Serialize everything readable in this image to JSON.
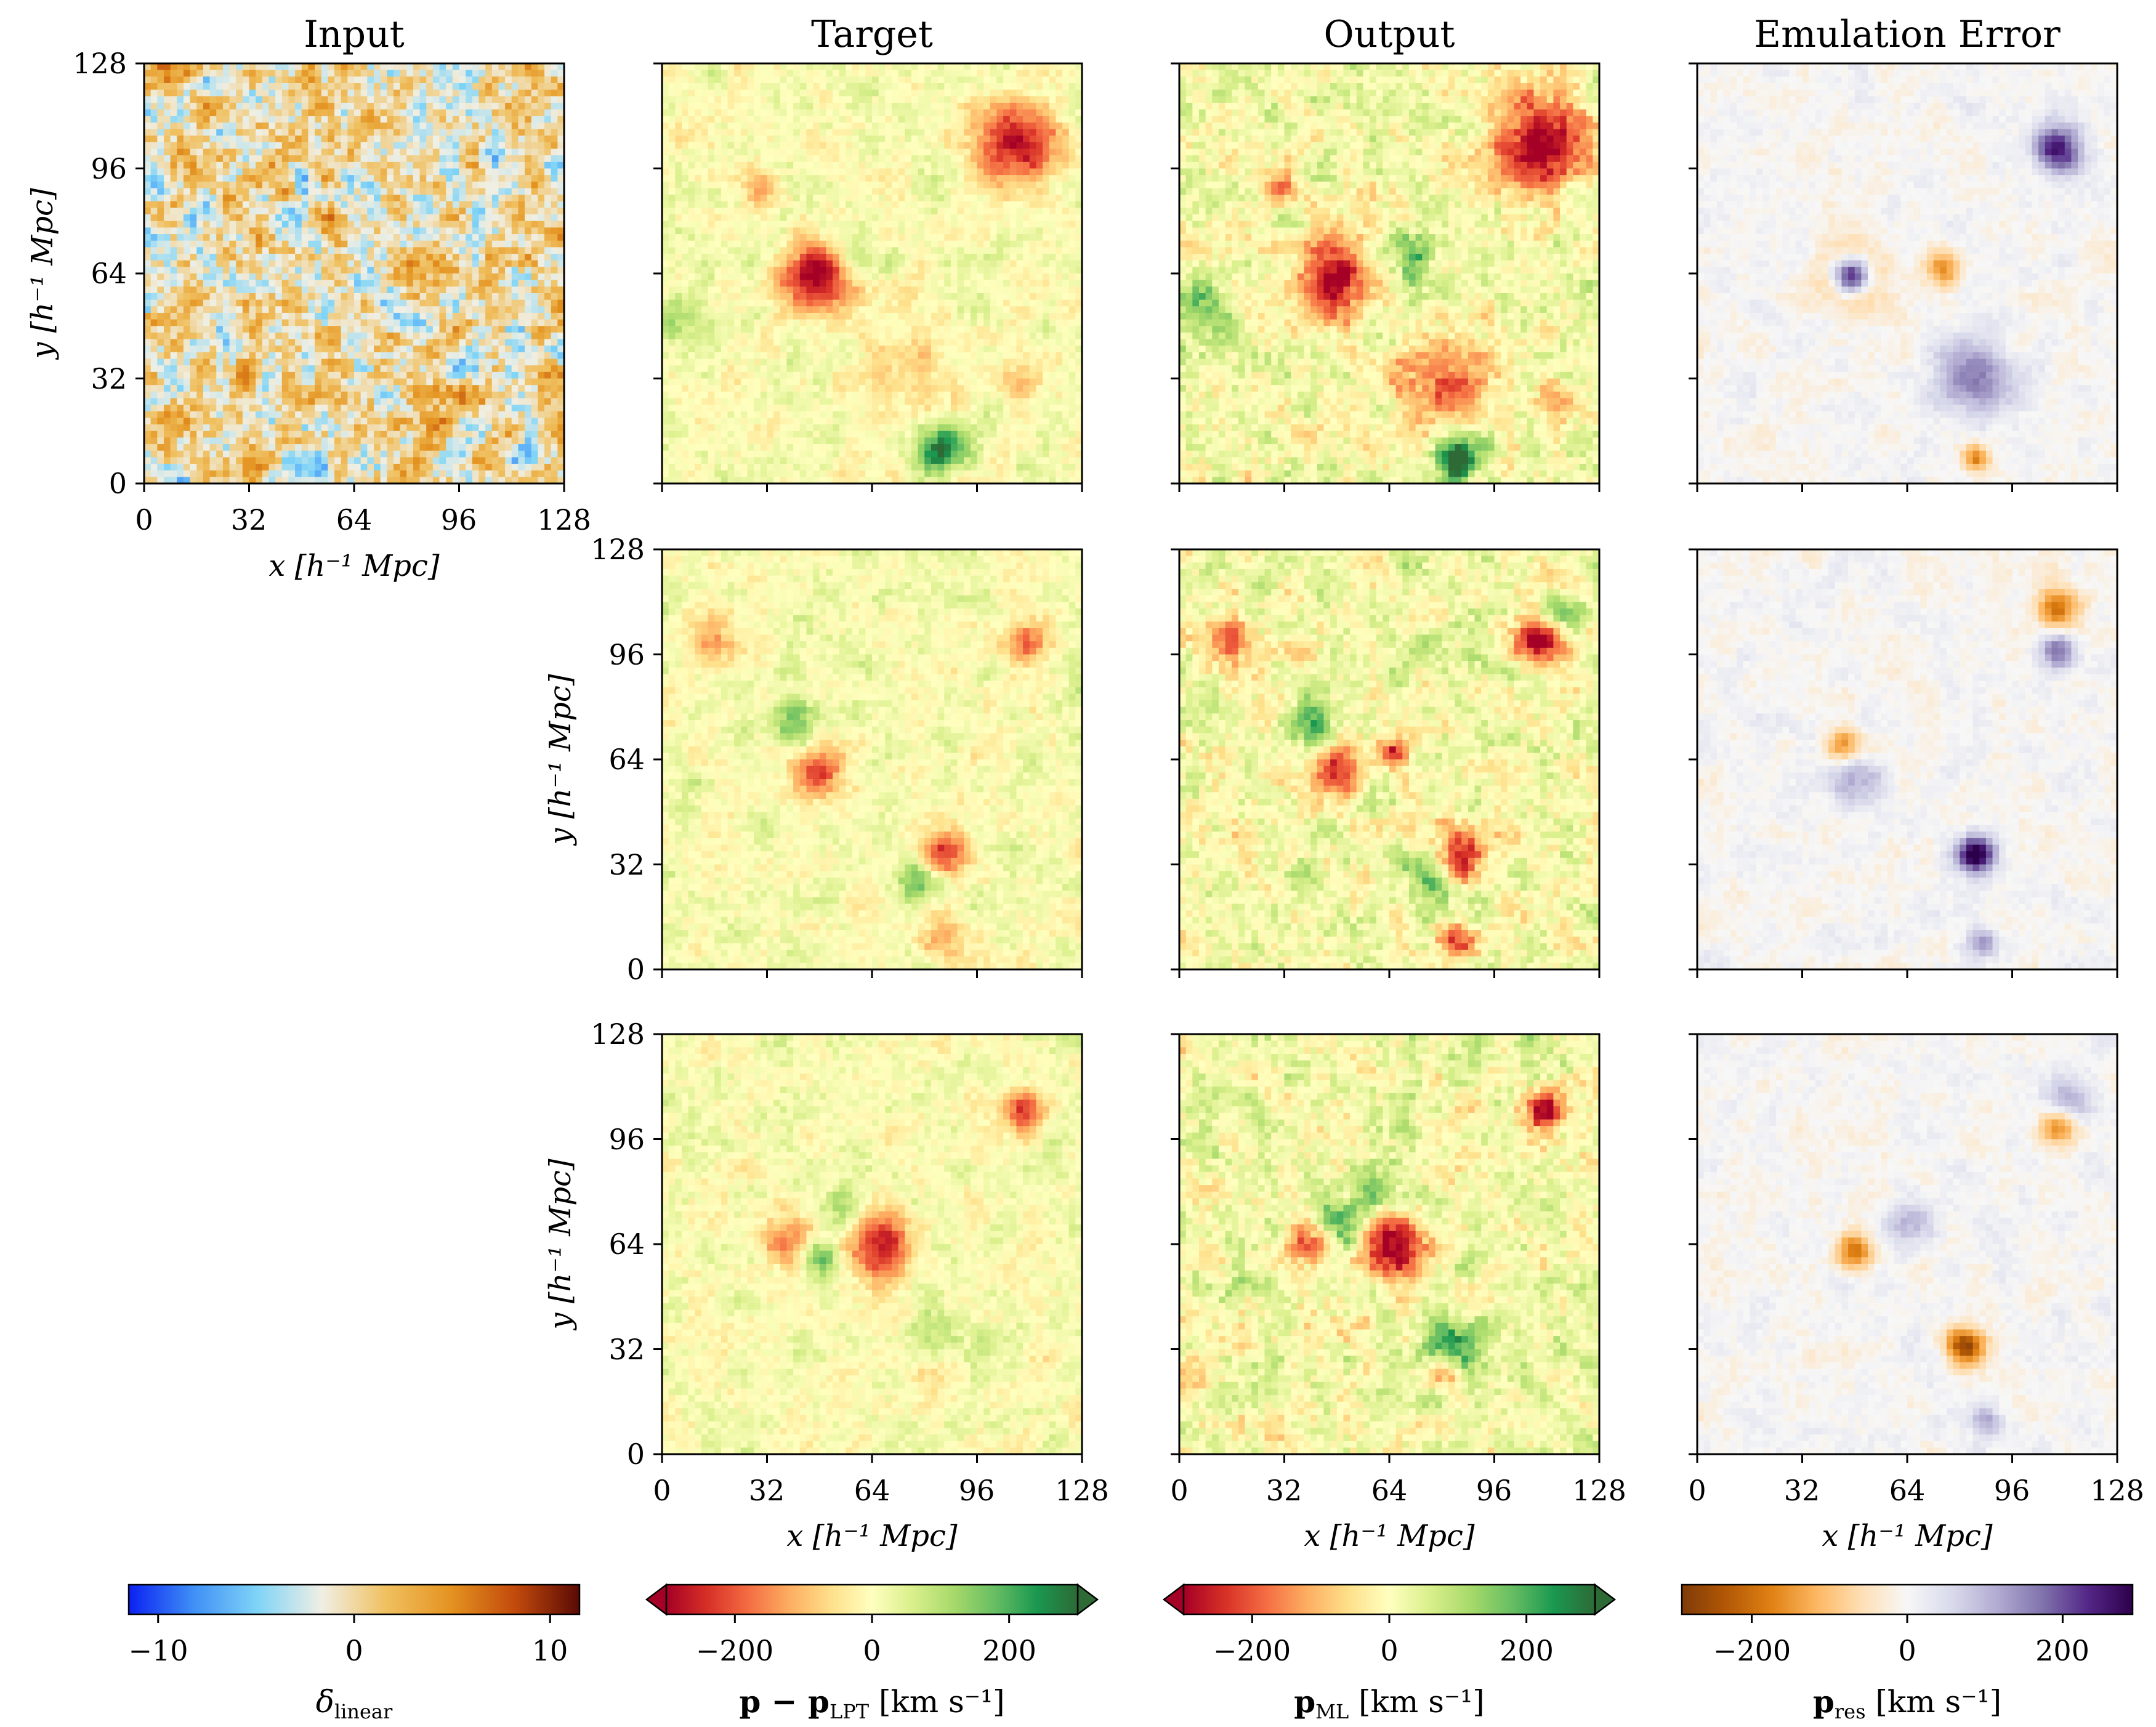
{
  "figure": {
    "column_titles": [
      "Input",
      "Target",
      "Output",
      "Emulation Error"
    ]
  },
  "chart_data": [
    {
      "type": "heatmap",
      "panel": "row1-input",
      "title": "Input",
      "xlabel": "x [h⁻¹ Mpc]",
      "ylabel": "y [h⁻¹ Mpc]",
      "xlim": [
        0,
        128
      ],
      "ylim": [
        0,
        128
      ],
      "xticks": [
        "0",
        "32",
        "64",
        "96",
        "128"
      ],
      "yticks": [
        "0",
        "32",
        "64",
        "96",
        "128"
      ],
      "colormap": "blue-cyan-white-orange-darkred",
      "features": []
    },
    {
      "type": "heatmap",
      "panel": "row1-target",
      "title": "Target",
      "xlim": [
        0,
        128
      ],
      "ylim": [
        0,
        128
      ],
      "colormap": "RdYlGn",
      "features": [
        {
          "x": 47,
          "y": 63,
          "r": 7,
          "v": -1.0
        },
        {
          "x": 108,
          "y": 103,
          "r": 9,
          "v": -0.85
        },
        {
          "x": 85,
          "y": 10,
          "r": 5,
          "v": 0.8
        },
        {
          "x": 30,
          "y": 90,
          "r": 4,
          "v": -0.35
        },
        {
          "x": 75,
          "y": 35,
          "r": 10,
          "v": -0.25
        },
        {
          "x": 110,
          "y": 30,
          "r": 4,
          "v": -0.35
        },
        {
          "x": 5,
          "y": 50,
          "r": 5,
          "v": 0.3
        },
        {
          "x": 60,
          "y": 70,
          "r": 5,
          "v": 0.3
        }
      ]
    },
    {
      "type": "heatmap",
      "panel": "row1-output",
      "title": "Output",
      "xlim": [
        0,
        128
      ],
      "ylim": [
        0,
        128
      ],
      "colormap": "RdYlGn",
      "features": [
        {
          "x": 47,
          "y": 63,
          "r": 8,
          "v": -1.0
        },
        {
          "x": 110,
          "y": 103,
          "r": 10,
          "v": -1.0
        },
        {
          "x": 85,
          "y": 8,
          "r": 5,
          "v": 0.9
        },
        {
          "x": 80,
          "y": 30,
          "r": 10,
          "v": -0.6
        },
        {
          "x": 5,
          "y": 55,
          "r": 6,
          "v": 0.5
        },
        {
          "x": 70,
          "y": 70,
          "r": 5,
          "v": 0.45
        },
        {
          "x": 30,
          "y": 90,
          "r": 4,
          "v": -0.5
        },
        {
          "x": 115,
          "y": 25,
          "r": 4,
          "v": -0.5
        }
      ]
    },
    {
      "type": "heatmap",
      "panel": "row1-error",
      "title": "Emulation Error",
      "xlim": [
        0,
        128
      ],
      "ylim": [
        0,
        128
      ],
      "colormap": "PuOr",
      "features": [
        {
          "x": 47,
          "y": 63,
          "r": 4,
          "v": 1.0
        },
        {
          "x": 47,
          "y": 63,
          "r": 8,
          "v": -0.35
        },
        {
          "x": 110,
          "y": 102,
          "r": 5,
          "v": 0.8
        },
        {
          "x": 85,
          "y": 32,
          "r": 8,
          "v": 0.5
        },
        {
          "x": 75,
          "y": 65,
          "r": 4,
          "v": -0.45
        },
        {
          "x": 85,
          "y": 8,
          "r": 3,
          "v": -0.5
        }
      ]
    },
    {
      "type": "heatmap",
      "panel": "row2-target",
      "ylabel": "y [h⁻¹ Mpc]",
      "xlim": [
        0,
        128
      ],
      "ylim": [
        0,
        128
      ],
      "colormap": "RdYlGn",
      "features": [
        {
          "x": 85,
          "y": 35,
          "r": 5,
          "v": -0.9
        },
        {
          "x": 80,
          "y": 30,
          "r": 6,
          "v": 0.5
        },
        {
          "x": 48,
          "y": 60,
          "r": 6,
          "v": -0.6
        },
        {
          "x": 40,
          "y": 75,
          "r": 5,
          "v": 0.45
        },
        {
          "x": 15,
          "y": 100,
          "r": 5,
          "v": -0.5
        },
        {
          "x": 110,
          "y": 100,
          "r": 5,
          "v": -0.5
        },
        {
          "x": 85,
          "y": 10,
          "r": 4,
          "v": -0.4
        }
      ]
    },
    {
      "type": "heatmap",
      "panel": "row2-output",
      "xlim": [
        0,
        128
      ],
      "ylim": [
        0,
        128
      ],
      "colormap": "RdYlGn",
      "features": [
        {
          "x": 85,
          "y": 35,
          "r": 6,
          "v": -1.0
        },
        {
          "x": 78,
          "y": 30,
          "r": 6,
          "v": 0.6
        },
        {
          "x": 48,
          "y": 60,
          "r": 6,
          "v": -0.8
        },
        {
          "x": 40,
          "y": 75,
          "r": 5,
          "v": 0.55
        },
        {
          "x": 66,
          "y": 66,
          "r": 3,
          "v": -0.8
        },
        {
          "x": 15,
          "y": 100,
          "r": 5,
          "v": -0.6
        },
        {
          "x": 110,
          "y": 100,
          "r": 5,
          "v": -0.9
        },
        {
          "x": 115,
          "y": 108,
          "r": 4,
          "v": 0.5
        },
        {
          "x": 85,
          "y": 8,
          "r": 4,
          "v": -0.8
        }
      ]
    },
    {
      "type": "heatmap",
      "panel": "row2-error",
      "xlim": [
        0,
        128
      ],
      "ylim": [
        0,
        128
      ],
      "colormap": "PuOr",
      "features": [
        {
          "x": 85,
          "y": 35,
          "r": 4,
          "v": 1.0
        },
        {
          "x": 47,
          "y": 58,
          "r": 6,
          "v": 0.35
        },
        {
          "x": 45,
          "y": 68,
          "r": 4,
          "v": -0.5
        },
        {
          "x": 110,
          "y": 110,
          "r": 5,
          "v": -0.55
        },
        {
          "x": 110,
          "y": 97,
          "r": 4,
          "v": 0.6
        },
        {
          "x": 87,
          "y": 8,
          "r": 3,
          "v": 0.45
        }
      ]
    },
    {
      "type": "heatmap",
      "panel": "row3-target",
      "xlabel": "x [h⁻¹ Mpc]",
      "ylabel": "y [h⁻¹ Mpc]",
      "xlim": [
        0,
        128
      ],
      "ylim": [
        0,
        128
      ],
      "colormap": "RdYlGn",
      "features": [
        {
          "x": 66,
          "y": 63,
          "r": 7,
          "v": -0.8
        },
        {
          "x": 82,
          "y": 32,
          "r": 6,
          "v": 0.6
        },
        {
          "x": 80,
          "y": 28,
          "r": 6,
          "v": -0.5
        },
        {
          "x": 38,
          "y": 65,
          "r": 5,
          "v": -0.6
        },
        {
          "x": 48,
          "y": 60,
          "r": 4,
          "v": 0.55
        },
        {
          "x": 110,
          "y": 105,
          "r": 4,
          "v": -0.8
        },
        {
          "x": 55,
          "y": 75,
          "r": 4,
          "v": 0.4
        }
      ]
    },
    {
      "type": "heatmap",
      "panel": "row3-output",
      "xlabel": "x [h⁻¹ Mpc]",
      "xlim": [
        0,
        128
      ],
      "ylim": [
        0,
        128
      ],
      "colormap": "RdYlGn",
      "features": [
        {
          "x": 66,
          "y": 63,
          "r": 7,
          "v": -1.0
        },
        {
          "x": 82,
          "y": 32,
          "r": 6,
          "v": 0.85
        },
        {
          "x": 80,
          "y": 25,
          "r": 4,
          "v": -0.8
        },
        {
          "x": 40,
          "y": 65,
          "r": 5,
          "v": -0.7
        },
        {
          "x": 48,
          "y": 70,
          "r": 5,
          "v": 0.75
        },
        {
          "x": 111,
          "y": 105,
          "r": 4,
          "v": -1.0
        },
        {
          "x": 60,
          "y": 78,
          "r": 4,
          "v": 0.5
        }
      ]
    },
    {
      "type": "heatmap",
      "panel": "row3-error",
      "xlabel": "x [h⁻¹ Mpc]",
      "xlim": [
        0,
        128
      ],
      "ylim": [
        0,
        128
      ],
      "colormap": "PuOr",
      "features": [
        {
          "x": 82,
          "y": 33,
          "r": 4,
          "v": -0.8
        },
        {
          "x": 48,
          "y": 62,
          "r": 4,
          "v": -0.6
        },
        {
          "x": 110,
          "y": 100,
          "r": 4,
          "v": -0.55
        },
        {
          "x": 112,
          "y": 108,
          "r": 5,
          "v": 0.4
        },
        {
          "x": 65,
          "y": 70,
          "r": 5,
          "v": 0.35
        },
        {
          "x": 88,
          "y": 10,
          "r": 3,
          "v": 0.4
        }
      ]
    }
  ],
  "colorbars": [
    {
      "label": "δ_linear",
      "label_main": "δ",
      "label_sub": "linear",
      "ticks": [
        "−10",
        "0",
        "10"
      ],
      "range": [
        -11.5,
        11.5
      ],
      "tick_values": [
        -10,
        0,
        10
      ],
      "extend": "neither"
    },
    {
      "label": "p − p_LPT [km s⁻¹]",
      "label_main": "p − p",
      "label_sub": "LPT",
      "label_unit": " [km s⁻¹]",
      "ticks": [
        "−200",
        "0",
        "200"
      ],
      "range": [
        -300,
        300
      ],
      "tick_values": [
        -200,
        0,
        200
      ],
      "extend": "both"
    },
    {
      "label": "p_ML [km s⁻¹]",
      "label_main": "p",
      "label_sub": "ML",
      "label_unit": " [km s⁻¹]",
      "ticks": [
        "−200",
        "0",
        "200"
      ],
      "range": [
        -300,
        300
      ],
      "tick_values": [
        -200,
        0,
        200
      ],
      "extend": "both"
    },
    {
      "label": "p_res [km s⁻¹]",
      "label_main": "p",
      "label_sub": "res",
      "label_unit": " [km s⁻¹]",
      "ticks": [
        "−200",
        "0",
        "200"
      ],
      "range": [
        -290,
        290
      ],
      "tick_values": [
        -200,
        0,
        200
      ],
      "extend": "neither"
    }
  ],
  "colormaps": {
    "input": [
      "#0b20f2",
      "#3f8ff6",
      "#7fd4f7",
      "#f0efe4",
      "#f0c060",
      "#e49320",
      "#c24a0c",
      "#5a0a04"
    ],
    "rdylgn": [
      "#a50026",
      "#d73027",
      "#f46d43",
      "#fdae61",
      "#fee08b",
      "#ffffbf",
      "#d9ef8b",
      "#a6d96a",
      "#66bd63",
      "#1a9850",
      "#2d6a36"
    ],
    "puor": [
      "#7f3b08",
      "#b35806",
      "#e08214",
      "#fdb863",
      "#fee0b6",
      "#f7f7f7",
      "#d8daeb",
      "#b2abd2",
      "#8073ac",
      "#542788",
      "#2d004b"
    ]
  }
}
